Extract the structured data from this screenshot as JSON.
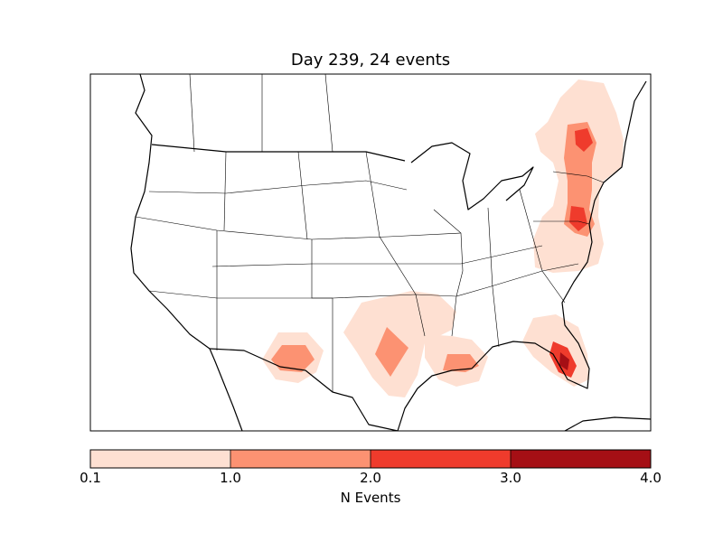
{
  "title": "Day 239, 24 events",
  "colorbar": {
    "label": "N Events",
    "ticks": [
      "0.1",
      "1.0",
      "2.0",
      "3.0",
      "4.0"
    ],
    "bins": [
      {
        "from": 0.1,
        "to": 1.0,
        "color": "#fee0d2"
      },
      {
        "from": 1.0,
        "to": 2.0,
        "color": "#fc9272"
      },
      {
        "from": 2.0,
        "to": 3.0,
        "color": "#ef3b2c"
      },
      {
        "from": 3.0,
        "to": 4.0,
        "color": "#a50f15"
      }
    ]
  },
  "colors": {
    "level_0_1": "#fee0d2",
    "level_1_2": "#fc9272",
    "level_2_3": "#ef3b2c",
    "level_3_4": "#a50f15",
    "outline": "#000000"
  }
}
